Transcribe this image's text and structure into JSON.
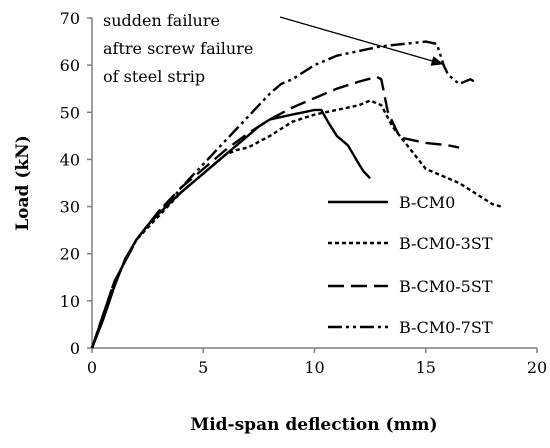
{
  "chart_data": {
    "type": "line",
    "xlabel": "Mid-span deflection (mm)",
    "ylabel": "Load (kN)",
    "xlim": [
      0,
      20
    ],
    "ylim": [
      0,
      70
    ],
    "xticks": [
      0,
      5,
      10,
      15,
      20
    ],
    "yticks": [
      0,
      10,
      20,
      30,
      40,
      50,
      60,
      70
    ],
    "grid": false,
    "legend_position": "right",
    "annotation": {
      "lines": [
        "sudden failure",
        "aftre screw failure",
        "of steel strip"
      ],
      "arrow_target": {
        "x": 15.8,
        "y": 60.2
      }
    },
    "series": [
      {
        "name": "B-CM0",
        "dash": "solid",
        "points": [
          [
            0,
            0
          ],
          [
            0.5,
            6
          ],
          [
            1,
            13
          ],
          [
            1.5,
            19
          ],
          [
            2,
            23
          ],
          [
            2.5,
            26
          ],
          [
            3,
            28.5
          ],
          [
            4,
            33
          ],
          [
            5,
            37
          ],
          [
            6,
            41
          ],
          [
            7,
            45
          ],
          [
            7.5,
            47
          ],
          [
            8,
            48.5
          ],
          [
            9,
            49.5
          ],
          [
            9.5,
            50
          ],
          [
            10,
            50.5
          ],
          [
            10.3,
            50.5
          ],
          [
            10.6,
            48
          ],
          [
            11,
            45
          ],
          [
            11.5,
            43
          ],
          [
            12,
            39
          ],
          [
            12.2,
            37.5
          ],
          [
            12.5,
            36
          ]
        ]
      },
      {
        "name": "B-CM0-3ST",
        "dash": "short",
        "points": [
          [
            0,
            0
          ],
          [
            0.5,
            7
          ],
          [
            1,
            14
          ],
          [
            2,
            23
          ],
          [
            3,
            28
          ],
          [
            4,
            33
          ],
          [
            5,
            37
          ],
          [
            6,
            41
          ],
          [
            6.5,
            42
          ],
          [
            7,
            42.5
          ],
          [
            8,
            45
          ],
          [
            9,
            48
          ],
          [
            10,
            49.5
          ],
          [
            11,
            50.5
          ],
          [
            12,
            51.5
          ],
          [
            12.5,
            52.5
          ],
          [
            13,
            51.5
          ],
          [
            13.5,
            47
          ],
          [
            14,
            44
          ],
          [
            14.5,
            41
          ],
          [
            15,
            38
          ],
          [
            15.5,
            37
          ],
          [
            16,
            36
          ],
          [
            16.5,
            35
          ],
          [
            17,
            33.5
          ],
          [
            17.5,
            32
          ],
          [
            18,
            30.5
          ],
          [
            18.4,
            30
          ]
        ]
      },
      {
        "name": "B-CM0-5ST",
        "dash": "long",
        "points": [
          [
            0,
            0
          ],
          [
            0.5,
            7
          ],
          [
            1,
            14
          ],
          [
            2,
            23
          ],
          [
            3,
            29
          ],
          [
            4,
            34
          ],
          [
            5,
            38
          ],
          [
            6,
            42
          ],
          [
            7,
            45.5
          ],
          [
            8,
            48.5
          ],
          [
            9,
            51
          ],
          [
            10,
            53
          ],
          [
            11,
            55
          ],
          [
            12,
            56.5
          ],
          [
            12.8,
            57.5
          ],
          [
            13,
            57
          ],
          [
            13.3,
            50
          ],
          [
            13.8,
            45
          ],
          [
            14,
            44.5
          ],
          [
            15,
            43.5
          ],
          [
            16,
            43
          ],
          [
            16.5,
            42.5
          ]
        ]
      },
      {
        "name": "B-CM0-7ST",
        "dash": "dashdotdot",
        "points": [
          [
            0,
            0
          ],
          [
            0.5,
            7
          ],
          [
            1,
            14
          ],
          [
            2,
            23
          ],
          [
            3,
            29
          ],
          [
            3.5,
            31
          ],
          [
            4,
            34
          ],
          [
            5,
            39
          ],
          [
            6,
            44
          ],
          [
            6.5,
            46.5
          ],
          [
            7,
            49
          ],
          [
            8,
            54
          ],
          [
            8.5,
            56
          ],
          [
            9,
            57
          ],
          [
            10,
            60
          ],
          [
            11,
            62
          ],
          [
            12,
            63
          ],
          [
            13,
            64
          ],
          [
            14,
            64.5
          ],
          [
            15,
            65
          ],
          [
            15.5,
            64.5
          ],
          [
            15.8,
            60
          ],
          [
            16,
            58
          ],
          [
            16.5,
            56
          ],
          [
            17,
            57
          ],
          [
            17.2,
            56.5
          ]
        ]
      }
    ]
  }
}
